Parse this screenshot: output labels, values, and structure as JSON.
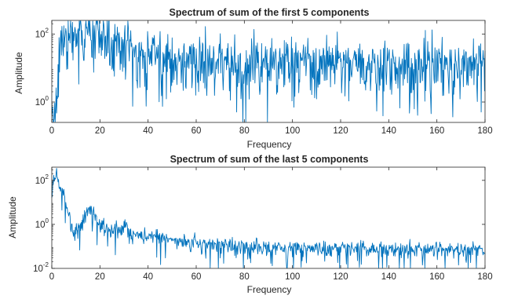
{
  "colors": {
    "line": "#0072BD",
    "axes": "#262626",
    "background": "#ffffff"
  },
  "chart_data": [
    {
      "type": "line",
      "title": "Spectrum of sum of the first 5 components",
      "xlabel": "Frequency",
      "ylabel": "Amplitude",
      "xlim": [
        0,
        180
      ],
      "xticks": [
        "0",
        "20",
        "40",
        "60",
        "80",
        "100",
        "120",
        "140",
        "160",
        "180"
      ],
      "yscale": "log",
      "ylim_exponent": [
        -0.6,
        2.4
      ],
      "yticks": [
        {
          "base": "10",
          "exp": "0",
          "value": 1
        },
        {
          "base": "10",
          "exp": "2",
          "value": 100
        }
      ],
      "grid": false,
      "series_profile": {
        "x": [
          0,
          1,
          2,
          3,
          4,
          5,
          6,
          8,
          10,
          14,
          18,
          22,
          26,
          30,
          35,
          40,
          45,
          50,
          60,
          80,
          100,
          120,
          140,
          160,
          180
        ],
        "y_center": [
          0.35,
          0.45,
          2.0,
          12,
          30,
          70,
          110,
          120,
          110,
          100,
          95,
          70,
          55,
          45,
          35,
          28,
          22,
          18,
          15,
          15,
          14,
          13,
          13,
          14,
          15
        ],
        "noise_decades": 0.35
      }
    },
    {
      "type": "line",
      "title": "Spectrum of sum of the last 5 components",
      "xlabel": "Frequency",
      "ylabel": "Amplitude",
      "xlim": [
        0,
        180
      ],
      "xticks": [
        "0",
        "20",
        "40",
        "60",
        "80",
        "100",
        "120",
        "140",
        "160",
        "180"
      ],
      "yscale": "log",
      "ylim_exponent": [
        -2,
        2.6
      ],
      "yticks": [
        {
          "base": "10",
          "exp": "-2",
          "value": 0.01
        },
        {
          "base": "10",
          "exp": "0",
          "value": 1
        },
        {
          "base": "10",
          "exp": "2",
          "value": 100
        }
      ],
      "grid": false,
      "series_profile": {
        "x": [
          0,
          1,
          2,
          3,
          4,
          5,
          6,
          7,
          8,
          9,
          10,
          12,
          15,
          17,
          20,
          25,
          30,
          35,
          40,
          50,
          60,
          80,
          100,
          120,
          140,
          160,
          180
        ],
        "y_center": [
          30,
          100,
          130,
          90,
          60,
          30,
          8,
          2.5,
          1.0,
          0.6,
          0.5,
          0.8,
          5,
          4,
          1.0,
          0.6,
          0.8,
          0.35,
          0.3,
          0.2,
          0.15,
          0.1,
          0.09,
          0.085,
          0.08,
          0.075,
          0.07
        ],
        "noise_decades": 0.15
      }
    }
  ]
}
